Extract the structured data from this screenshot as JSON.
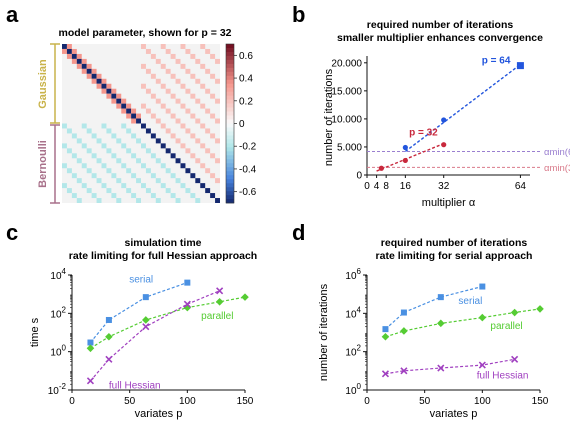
{
  "panels": {
    "a": {
      "label": "a",
      "title": "model parameter, shown for p = 32",
      "group_labels": [
        "Gaussian",
        "Bernoulli"
      ],
      "group_colors": [
        "#c9b34a",
        "#a8708a"
      ],
      "colorbar_ticks": [
        "0.6",
        "0.4",
        "0.2",
        "0",
        "-0.2",
        "-0.4",
        "-0.6"
      ]
    },
    "b": {
      "label": "b"
    },
    "c": {
      "label": "c"
    },
    "d": {
      "label": "d"
    }
  },
  "chart_data": [
    {
      "id": "a",
      "type": "heatmap",
      "title": "model parameter, shown for p = 32",
      "size": 32,
      "gaussian_rows": 16,
      "diagonal_value": -0.7,
      "adjacent_value": 0.35,
      "off_diagonal_positive": 0.2,
      "off_diagonal_negative": -0.2,
      "colorbar_range": [
        -0.7,
        0.7
      ],
      "colorbar_ticks": [
        0.6,
        0.4,
        0.2,
        0,
        -0.2,
        -0.4,
        -0.6
      ]
    },
    {
      "id": "b",
      "type": "line",
      "title": "required number of iterations",
      "subtitle": "smaller multiplier enhances convergence",
      "xlabel": "multiplier α",
      "ylabel": "number of iterations",
      "xlim": [
        0,
        68
      ],
      "ylim": [
        0,
        20500
      ],
      "xticks": [
        0,
        4,
        8,
        16,
        32,
        64
      ],
      "yticks": [
        0,
        5000,
        10000,
        15000,
        20000
      ],
      "ytick_labels": [
        "0",
        "5.000",
        "10.000",
        "15.000",
        "20.000"
      ],
      "series": [
        {
          "name": "p = 64",
          "color": "#2255dd",
          "x": [
            16,
            32,
            64
          ],
          "y": [
            4900,
            9800,
            19500
          ],
          "fit": [
            [
              16,
              4200
            ],
            [
              64,
              19700
            ]
          ]
        },
        {
          "name": "p = 32",
          "color": "#c8283c",
          "x": [
            6,
            16,
            32
          ],
          "y": [
            1200,
            2600,
            5400
          ],
          "fit": [
            [
              4,
              700
            ],
            [
              32,
              5600
            ]
          ]
        }
      ],
      "reference_lines": [
        {
          "label": "αmin(64)",
          "y": 4200,
          "color": "#9a7fd0"
        },
        {
          "label": "αmin(32)",
          "y": 1350,
          "color": "#d97a8a"
        }
      ]
    },
    {
      "id": "c",
      "type": "scatter",
      "title": "simulation time",
      "subtitle": "rate limiting for full Hessian approach",
      "xlabel": "variates p",
      "ylabel": "time s",
      "xlim": [
        0,
        150
      ],
      "ylim_log10": [
        -2,
        4
      ],
      "xticks": [
        0,
        50,
        100,
        150
      ],
      "yticks_log10": [
        -2,
        0,
        2,
        4
      ],
      "series": [
        {
          "name": "serial",
          "color": "#4a90e2",
          "marker": "square",
          "x": [
            16,
            32,
            64,
            100
          ],
          "y": [
            3,
            45,
            700,
            4000
          ]
        },
        {
          "name": "parallel",
          "color": "#55cc33",
          "marker": "diamond",
          "x": [
            16,
            32,
            64,
            100,
            128,
            150
          ],
          "y": [
            1.5,
            6,
            45,
            200,
            400,
            700
          ]
        },
        {
          "name": "full Hessian",
          "color": "#a040c0",
          "marker": "cross",
          "x": [
            16,
            32,
            64,
            100,
            128
          ],
          "y": [
            0.03,
            0.4,
            20,
            300,
            1500
          ]
        }
      ]
    },
    {
      "id": "d",
      "type": "scatter",
      "title": "required number of iterations",
      "subtitle": "rate limiting for serial approach",
      "xlabel": "variates p",
      "ylabel": "number of iterations",
      "xlim": [
        0,
        150
      ],
      "ylim_log10": [
        0,
        6
      ],
      "xticks": [
        0,
        50,
        100,
        150
      ],
      "yticks_log10": [
        0,
        2,
        4,
        6
      ],
      "series": [
        {
          "name": "serial",
          "color": "#4a90e2",
          "marker": "square",
          "x": [
            16,
            32,
            64,
            100
          ],
          "y": [
            1500,
            11000,
            70000,
            250000
          ]
        },
        {
          "name": "parallel",
          "color": "#55cc33",
          "marker": "diamond",
          "x": [
            16,
            32,
            64,
            100,
            128,
            150
          ],
          "y": [
            600,
            1200,
            3000,
            6000,
            11000,
            17000
          ]
        },
        {
          "name": "full Hessian",
          "color": "#a040c0",
          "marker": "cross",
          "x": [
            16,
            32,
            64,
            100,
            128
          ],
          "y": [
            7,
            10,
            14,
            20,
            40
          ]
        }
      ]
    }
  ]
}
